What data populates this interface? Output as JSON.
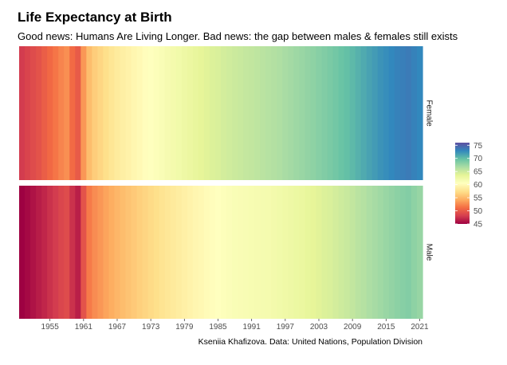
{
  "title": "Life Expectancy at Birth",
  "subtitle": "Good news: Humans Are Living Longer. Bad news: the gap between males & females still exists",
  "caption": "Kseniia Khafizova. Data: United Nations, Population Division",
  "chart_data": {
    "type": "heatmap",
    "title": "Life Expectancy at Birth",
    "subtitle": "Good news: Humans Are Living Longer. Bad news: the gap between males & females still exists",
    "x_label": "",
    "y_label": "",
    "colorscale": "Spectral",
    "color_range": [
      45,
      76
    ],
    "legend": {
      "position": "right",
      "ticks": [
        45,
        50,
        55,
        60,
        65,
        70,
        75
      ]
    },
    "x_ticks": [
      1955,
      1961,
      1967,
      1973,
      1979,
      1985,
      1991,
      1997,
      2003,
      2009,
      2015,
      2021
    ],
    "years": [
      1950,
      1951,
      1952,
      1953,
      1954,
      1955,
      1956,
      1957,
      1958,
      1959,
      1960,
      1961,
      1962,
      1963,
      1964,
      1965,
      1966,
      1967,
      1968,
      1969,
      1970,
      1971,
      1972,
      1973,
      1974,
      1975,
      1976,
      1977,
      1978,
      1979,
      1980,
      1981,
      1982,
      1983,
      1984,
      1985,
      1986,
      1987,
      1988,
      1989,
      1990,
      1991,
      1992,
      1993,
      1994,
      1995,
      1996,
      1997,
      1998,
      1999,
      2000,
      2001,
      2002,
      2003,
      2004,
      2005,
      2006,
      2007,
      2008,
      2009,
      2010,
      2011,
      2012,
      2013,
      2014,
      2015,
      2016,
      2017,
      2018,
      2019,
      2020,
      2021
    ],
    "facets": [
      {
        "name": "Female",
        "values": [
          48.0,
          48.5,
          49.0,
          49.5,
          50.2,
          50.9,
          51.6,
          52.3,
          52.8,
          51.0,
          50.0,
          53.2,
          55.2,
          56.2,
          56.8,
          57.4,
          58.0,
          58.5,
          58.9,
          59.2,
          59.6,
          59.9,
          60.3,
          60.6,
          60.9,
          61.2,
          61.6,
          61.9,
          62.2,
          62.6,
          62.9,
          63.2,
          63.5,
          63.8,
          64.1,
          64.3,
          64.6,
          64.8,
          65.0,
          65.2,
          65.4,
          65.5,
          65.7,
          65.9,
          66.1,
          66.3,
          66.5,
          66.8,
          67.0,
          67.3,
          67.5,
          67.8,
          68.0,
          68.3,
          68.6,
          68.9,
          69.2,
          69.6,
          69.9,
          70.3,
          70.7,
          71.1,
          71.5,
          71.9,
          72.3,
          72.6,
          72.9,
          73.2,
          73.4,
          73.6,
          73.2,
          72.9
        ]
      },
      {
        "name": "Male",
        "values": [
          45.0,
          45.4,
          45.9,
          46.4,
          46.9,
          47.5,
          48.0,
          48.6,
          49.0,
          47.5,
          46.5,
          49.5,
          51.8,
          52.7,
          53.2,
          53.8,
          54.3,
          54.8,
          55.2,
          55.6,
          56.0,
          56.4,
          56.7,
          57.1,
          57.4,
          57.8,
          58.1,
          58.4,
          58.7,
          59.0,
          59.3,
          59.6,
          59.8,
          60.1,
          60.3,
          60.5,
          60.8,
          61.0,
          61.2,
          61.3,
          61.4,
          61.5,
          61.6,
          61.7,
          61.8,
          62.0,
          62.2,
          62.4,
          62.6,
          62.8,
          63.0,
          63.3,
          63.5,
          63.8,
          64.1,
          64.3,
          64.6,
          64.9,
          65.2,
          65.5,
          65.9,
          66.2,
          66.6,
          66.9,
          67.2,
          67.5,
          67.8,
          68.1,
          68.3,
          68.5,
          68.0,
          67.6
        ]
      }
    ]
  }
}
